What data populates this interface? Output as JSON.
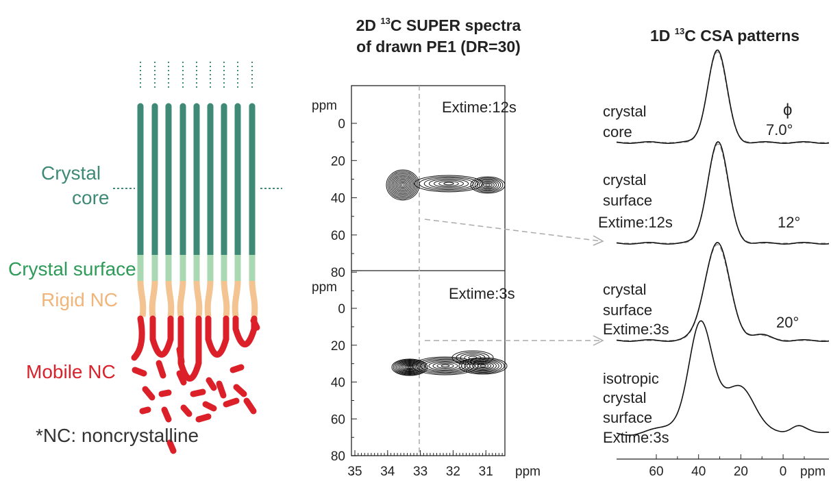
{
  "schematic": {
    "labels": [
      "Crystal",
      "core",
      "Crystal surface",
      "Rigid NC",
      "Mobile NC"
    ],
    "note": "*NC: noncrystalline"
  },
  "spectra_2d": {
    "title": {
      "pre": "2D ",
      "sup": "13",
      "post": "C SUPER spectra"
    },
    "title_line2": "of drawn PE1 (DR=30)",
    "panels": [
      {
        "label": "Extime:12s",
        "y_unit": "ppm",
        "yticks": [
          0,
          20,
          40,
          60,
          80
        ]
      },
      {
        "label": "Extime:3s",
        "y_unit": "ppm",
        "yticks": [
          0,
          20,
          40,
          60,
          80
        ]
      }
    ],
    "x_unit": "ppm",
    "xticks": [
      35,
      34,
      33,
      32,
      31
    ]
  },
  "patterns_1d": {
    "title": {
      "pre": "1D ",
      "sup": "13",
      "post": "C CSA patterns"
    },
    "angle_header": "ϕ",
    "traces": [
      {
        "label": [
          "crystal",
          "core"
        ],
        "angle": "7.0°"
      },
      {
        "label": [
          "crystal",
          "surface",
          "Extime:12s"
        ],
        "angle": "12°"
      },
      {
        "label": [
          "crystal",
          "surface",
          "Extime:3s"
        ],
        "angle": "20°"
      },
      {
        "label": [
          "isotropic",
          "crystal",
          "surface",
          "Extime:3s"
        ]
      }
    ],
    "xticks": [
      60,
      40,
      20,
      0
    ],
    "x_unit": "ppm"
  }
}
